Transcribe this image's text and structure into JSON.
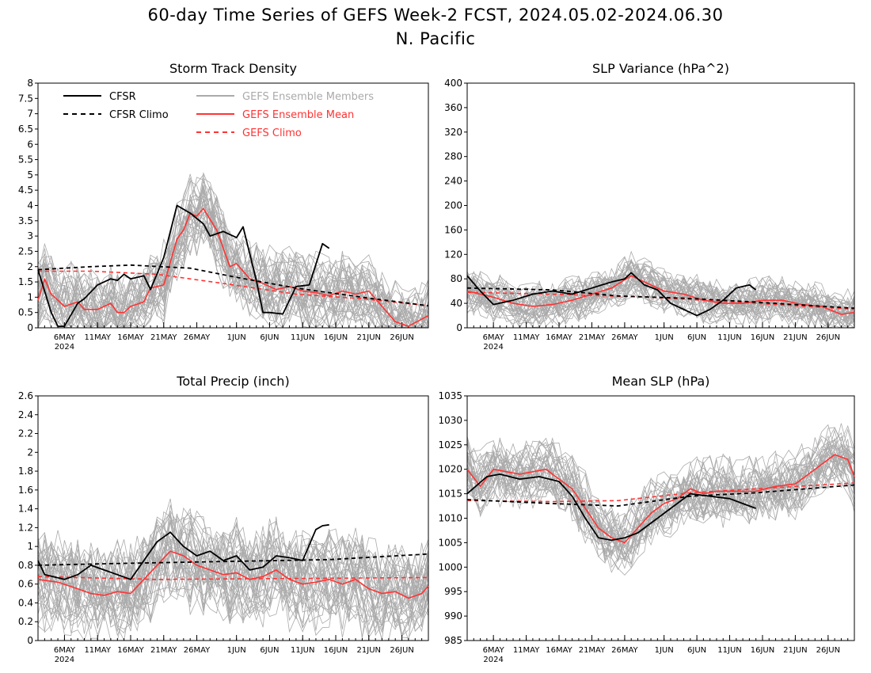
{
  "figure": {
    "title_line1": "60-day Time Series of GEFS Week-2 FCST, 2024.05.02-2024.06.30",
    "title_line2": "N. Pacific"
  },
  "legend": {
    "cfsr": "CFSR",
    "cfsr_climo": "CFSR Climo",
    "members": "GEFS Ensemble Members",
    "mean": "GEFS Ensemble Mean",
    "gefs_climo": "GEFS Climo"
  },
  "colors": {
    "cfsr": "#000000",
    "members": "#aaaaaa",
    "mean": "#ff3333",
    "gefs_climo": "#ff3333"
  },
  "chart_data": [
    {
      "type": "line",
      "title": "Storm Track Density",
      "xlabel": "",
      "ylabel": "",
      "x_start": "2024-05-02",
      "x_end": "2024-06-30",
      "xticks": [
        "6MAY",
        "11MAY",
        "16MAY",
        "21MAY",
        "26MAY",
        "1JUN",
        "6JUN",
        "11JUN",
        "16JUN",
        "21JUN",
        "26JUN"
      ],
      "xtick_dates": [
        "2024-05-06",
        "2024-05-11",
        "2024-05-16",
        "2024-05-21",
        "2024-05-26",
        "2024-06-01",
        "2024-06-06",
        "2024-06-11",
        "2024-06-16",
        "2024-06-21",
        "2024-06-26"
      ],
      "year_label": "2024",
      "ylim": [
        0,
        8
      ],
      "yticks": [
        "0",
        "0.5",
        "1",
        "1.5",
        "2",
        "2.5",
        "3",
        "3.5",
        "4",
        "4.5",
        "5",
        "5.5",
        "6",
        "6.5",
        "7",
        "7.5",
        "8"
      ],
      "grid": false,
      "legend": "top-left",
      "series": [
        {
          "name": "CFSR",
          "dates": [
            "2024-05-02",
            "2024-05-04",
            "2024-05-05",
            "2024-05-06",
            "2024-05-08",
            "2024-05-09",
            "2024-05-11",
            "2024-05-13",
            "2024-05-14",
            "2024-05-15",
            "2024-05-16",
            "2024-05-18",
            "2024-05-19",
            "2024-05-21",
            "2024-05-23",
            "2024-05-25",
            "2024-05-27",
            "2024-05-28",
            "2024-05-30",
            "2024-06-01",
            "2024-06-02",
            "2024-06-04",
            "2024-06-05",
            "2024-06-06",
            "2024-06-08",
            "2024-06-10",
            "2024-06-12",
            "2024-06-14",
            "2024-06-15"
          ],
          "values": [
            1.9,
            0.5,
            0.05,
            0.05,
            0.8,
            0.95,
            1.4,
            1.6,
            1.55,
            1.75,
            1.6,
            1.7,
            1.25,
            2.3,
            4.0,
            3.75,
            3.4,
            3.0,
            3.15,
            2.95,
            3.3,
            1.55,
            0.5,
            0.5,
            0.45,
            1.35,
            1.4,
            2.75,
            2.6
          ]
        },
        {
          "name": "CFSR Climo",
          "dates": [
            "2024-05-02",
            "2024-05-10",
            "2024-05-16",
            "2024-05-25",
            "2024-06-01",
            "2024-06-10",
            "2024-06-20",
            "2024-06-30"
          ],
          "values": [
            1.9,
            2.0,
            2.05,
            1.95,
            1.65,
            1.3,
            1.0,
            0.72
          ]
        },
        {
          "name": "GEFS Ensemble Mean",
          "dates": [
            "2024-05-02",
            "2024-05-03",
            "2024-05-04",
            "2024-05-05",
            "2024-05-06",
            "2024-05-08",
            "2024-05-09",
            "2024-05-11",
            "2024-05-13",
            "2024-05-14",
            "2024-05-15",
            "2024-05-16",
            "2024-05-18",
            "2024-05-19",
            "2024-05-21",
            "2024-05-23",
            "2024-05-24",
            "2024-05-25",
            "2024-05-26",
            "2024-05-27",
            "2024-05-29",
            "2024-05-31",
            "2024-06-01",
            "2024-06-03",
            "2024-06-05",
            "2024-06-07",
            "2024-06-09",
            "2024-06-11",
            "2024-06-13",
            "2024-06-15",
            "2024-06-17",
            "2024-06-19",
            "2024-06-21",
            "2024-06-23",
            "2024-06-25",
            "2024-06-27",
            "2024-06-30"
          ],
          "values": [
            0.9,
            1.6,
            1.1,
            0.9,
            0.7,
            0.85,
            0.6,
            0.6,
            0.8,
            0.5,
            0.5,
            0.7,
            0.85,
            1.3,
            1.4,
            2.9,
            3.2,
            3.75,
            3.65,
            3.9,
            3.2,
            2.0,
            2.1,
            1.6,
            1.45,
            1.25,
            1.35,
            1.2,
            1.15,
            1.05,
            1.2,
            1.1,
            1.2,
            0.7,
            0.2,
            0.05,
            0.4
          ]
        },
        {
          "name": "GEFS Climo",
          "dates": [
            "2024-05-02",
            "2024-05-10",
            "2024-05-20",
            "2024-05-30",
            "2024-06-10",
            "2024-06-20",
            "2024-06-30"
          ],
          "values": [
            1.85,
            1.85,
            1.75,
            1.45,
            1.1,
            0.95,
            0.72
          ]
        }
      ]
    },
    {
      "type": "line",
      "title": "SLP Variance (hPa^2)",
      "xlabel": "",
      "ylabel": "",
      "x_start": "2024-05-02",
      "x_end": "2024-06-30",
      "xticks": [
        "6MAY",
        "11MAY",
        "16MAY",
        "21MAY",
        "26MAY",
        "1JUN",
        "6JUN",
        "11JUN",
        "16JUN",
        "21JUN",
        "26JUN"
      ],
      "xtick_dates": [
        "2024-05-06",
        "2024-05-11",
        "2024-05-16",
        "2024-05-21",
        "2024-05-26",
        "2024-06-01",
        "2024-06-06",
        "2024-06-11",
        "2024-06-16",
        "2024-06-21",
        "2024-06-26"
      ],
      "year_label": "2024",
      "ylim": [
        0,
        400
      ],
      "yticks": [
        "0",
        "40",
        "80",
        "120",
        "160",
        "200",
        "240",
        "280",
        "320",
        "360",
        "400"
      ],
      "grid": false,
      "series": [
        {
          "name": "CFSR",
          "dates": [
            "2024-05-02",
            "2024-05-04",
            "2024-05-06",
            "2024-05-09",
            "2024-05-12",
            "2024-05-15",
            "2024-05-18",
            "2024-05-21",
            "2024-05-24",
            "2024-05-26",
            "2024-05-27",
            "2024-05-29",
            "2024-05-31",
            "2024-06-02",
            "2024-06-04",
            "2024-06-06",
            "2024-06-08",
            "2024-06-10",
            "2024-06-12",
            "2024-06-14",
            "2024-06-15"
          ],
          "values": [
            85,
            60,
            38,
            45,
            55,
            60,
            55,
            65,
            75,
            80,
            90,
            70,
            62,
            40,
            30,
            20,
            30,
            45,
            65,
            70,
            62
          ]
        },
        {
          "name": "CFSR Climo",
          "dates": [
            "2024-05-02",
            "2024-05-15",
            "2024-05-25",
            "2024-06-05",
            "2024-06-15",
            "2024-06-30"
          ],
          "values": [
            65,
            62,
            52,
            48,
            42,
            32
          ]
        },
        {
          "name": "GEFS Ensemble Mean",
          "dates": [
            "2024-05-02",
            "2024-05-06",
            "2024-05-09",
            "2024-05-12",
            "2024-05-15",
            "2024-05-18",
            "2024-05-21",
            "2024-05-24",
            "2024-05-27",
            "2024-05-29",
            "2024-06-01",
            "2024-06-04",
            "2024-06-07",
            "2024-06-10",
            "2024-06-13",
            "2024-06-16",
            "2024-06-19",
            "2024-06-22",
            "2024-06-25",
            "2024-06-28",
            "2024-06-30"
          ],
          "values": [
            60,
            50,
            40,
            35,
            38,
            45,
            55,
            65,
            85,
            75,
            60,
            55,
            45,
            40,
            40,
            45,
            45,
            38,
            35,
            22,
            25
          ]
        },
        {
          "name": "GEFS Climo",
          "dates": [
            "2024-05-02",
            "2024-05-15",
            "2024-05-30",
            "2024-06-15",
            "2024-06-30"
          ],
          "values": [
            58,
            55,
            50,
            40,
            30
          ]
        }
      ]
    },
    {
      "type": "line",
      "title": "Total Precip (inch)",
      "xlabel": "",
      "ylabel": "",
      "x_start": "2024-05-02",
      "x_end": "2024-06-30",
      "xticks": [
        "6MAY",
        "11MAY",
        "16MAY",
        "21MAY",
        "26MAY",
        "1JUN",
        "6JUN",
        "11JUN",
        "16JUN",
        "21JUN",
        "26JUN"
      ],
      "xtick_dates": [
        "2024-05-06",
        "2024-05-11",
        "2024-05-16",
        "2024-05-21",
        "2024-05-26",
        "2024-06-01",
        "2024-06-06",
        "2024-06-11",
        "2024-06-16",
        "2024-06-21",
        "2024-06-26"
      ],
      "year_label": "2024",
      "ylim": [
        0,
        2.6
      ],
      "yticks": [
        "0",
        "0.2",
        "0.4",
        "0.6",
        "0.8",
        "1",
        "1.2",
        "1.4",
        "1.6",
        "1.8",
        "2",
        "2.2",
        "2.4",
        "2.6"
      ],
      "grid": false,
      "series": [
        {
          "name": "CFSR",
          "dates": [
            "2024-05-02",
            "2024-05-03",
            "2024-05-06",
            "2024-05-08",
            "2024-05-10",
            "2024-05-12",
            "2024-05-14",
            "2024-05-16",
            "2024-05-18",
            "2024-05-20",
            "2024-05-22",
            "2024-05-24",
            "2024-05-26",
            "2024-05-28",
            "2024-05-30",
            "2024-06-01",
            "2024-06-03",
            "2024-06-05",
            "2024-06-07",
            "2024-06-09",
            "2024-06-11",
            "2024-06-13",
            "2024-06-14",
            "2024-06-15"
          ],
          "values": [
            0.85,
            0.7,
            0.65,
            0.7,
            0.8,
            0.75,
            0.7,
            0.65,
            0.85,
            1.05,
            1.15,
            1.0,
            0.9,
            0.95,
            0.85,
            0.9,
            0.75,
            0.78,
            0.9,
            0.88,
            0.85,
            1.18,
            1.22,
            1.23
          ]
        },
        {
          "name": "CFSR Climo",
          "dates": [
            "2024-05-02",
            "2024-05-15",
            "2024-05-30",
            "2024-06-15",
            "2024-06-30"
          ],
          "values": [
            0.8,
            0.82,
            0.84,
            0.86,
            0.92
          ]
        },
        {
          "name": "GEFS Ensemble Mean",
          "dates": [
            "2024-05-02",
            "2024-05-05",
            "2024-05-08",
            "2024-05-10",
            "2024-05-12",
            "2024-05-14",
            "2024-05-16",
            "2024-05-18",
            "2024-05-20",
            "2024-05-22",
            "2024-05-24",
            "2024-05-26",
            "2024-05-28",
            "2024-05-30",
            "2024-06-01",
            "2024-06-03",
            "2024-06-05",
            "2024-06-07",
            "2024-06-09",
            "2024-06-11",
            "2024-06-13",
            "2024-06-15",
            "2024-06-17",
            "2024-06-19",
            "2024-06-21",
            "2024-06-23",
            "2024-06-25",
            "2024-06-27",
            "2024-06-29",
            "2024-06-30"
          ],
          "values": [
            0.65,
            0.62,
            0.55,
            0.5,
            0.48,
            0.52,
            0.5,
            0.65,
            0.8,
            0.95,
            0.9,
            0.8,
            0.75,
            0.7,
            0.72,
            0.65,
            0.68,
            0.75,
            0.65,
            0.6,
            0.62,
            0.65,
            0.6,
            0.65,
            0.55,
            0.5,
            0.52,
            0.45,
            0.5,
            0.58
          ]
        },
        {
          "name": "GEFS Climo",
          "dates": [
            "2024-05-02",
            "2024-05-20",
            "2024-06-10",
            "2024-06-30"
          ],
          "values": [
            0.68,
            0.65,
            0.66,
            0.67
          ]
        }
      ]
    },
    {
      "type": "line",
      "title": "Mean SLP (hPa)",
      "xlabel": "",
      "ylabel": "",
      "x_start": "2024-05-02",
      "x_end": "2024-06-30",
      "xticks": [
        "6MAY",
        "11MAY",
        "16MAY",
        "21MAY",
        "26MAY",
        "1JUN",
        "6JUN",
        "11JUN",
        "16JUN",
        "21JUN",
        "26JUN"
      ],
      "xtick_dates": [
        "2024-05-06",
        "2024-05-11",
        "2024-05-16",
        "2024-05-21",
        "2024-05-26",
        "2024-06-01",
        "2024-06-06",
        "2024-06-11",
        "2024-06-16",
        "2024-06-21",
        "2024-06-26"
      ],
      "year_label": "2024",
      "ylim": [
        985,
        1035
      ],
      "yticks": [
        "985",
        "990",
        "995",
        "1000",
        "1005",
        "1010",
        "1015",
        "1020",
        "1025",
        "1030",
        "1035"
      ],
      "grid": false,
      "series": [
        {
          "name": "CFSR",
          "dates": [
            "2024-05-02",
            "2024-05-05",
            "2024-05-07",
            "2024-05-10",
            "2024-05-13",
            "2024-05-16",
            "2024-05-18",
            "2024-05-20",
            "2024-05-22",
            "2024-05-24",
            "2024-05-26",
            "2024-05-28",
            "2024-05-31",
            "2024-06-03",
            "2024-06-05",
            "2024-06-08",
            "2024-06-11",
            "2024-06-13",
            "2024-06-15"
          ],
          "values": [
            1015,
            1018.5,
            1019,
            1018,
            1018.5,
            1017.5,
            1014.5,
            1010,
            1006,
            1005.5,
            1006,
            1007,
            1010,
            1013,
            1015,
            1014.5,
            1014,
            1013,
            1012
          ]
        },
        {
          "name": "CFSR Climo",
          "dates": [
            "2024-05-02",
            "2024-05-15",
            "2024-05-25",
            "2024-06-05",
            "2024-06-15",
            "2024-06-30"
          ],
          "values": [
            1013.8,
            1013,
            1012.5,
            1014.5,
            1015.2,
            1016.8
          ]
        },
        {
          "name": "GEFS Ensemble Mean",
          "dates": [
            "2024-05-02",
            "2024-05-04",
            "2024-05-06",
            "2024-05-08",
            "2024-05-10",
            "2024-05-12",
            "2024-05-14",
            "2024-05-16",
            "2024-05-18",
            "2024-05-20",
            "2024-05-22",
            "2024-05-24",
            "2024-05-26",
            "2024-05-28",
            "2024-05-30",
            "2024-06-01",
            "2024-06-03",
            "2024-06-05",
            "2024-06-07",
            "2024-06-09",
            "2024-06-12",
            "2024-06-15",
            "2024-06-18",
            "2024-06-21",
            "2024-06-23",
            "2024-06-25",
            "2024-06-27",
            "2024-06-29",
            "2024-06-30"
          ],
          "values": [
            1020,
            1016.5,
            1020,
            1019.5,
            1019,
            1019.5,
            1020,
            1018,
            1016,
            1012,
            1008,
            1006,
            1005,
            1008,
            1011,
            1013,
            1014,
            1016,
            1015,
            1015.5,
            1015.5,
            1015.5,
            1016.5,
            1017,
            1019,
            1021,
            1023,
            1022,
            1018.5
          ]
        },
        {
          "name": "GEFS Climo",
          "dates": [
            "2024-05-02",
            "2024-05-15",
            "2024-05-25",
            "2024-06-05",
            "2024-06-15",
            "2024-06-30"
          ],
          "values": [
            1013.6,
            1013.4,
            1013.6,
            1015.2,
            1016,
            1017.2
          ]
        }
      ]
    }
  ]
}
